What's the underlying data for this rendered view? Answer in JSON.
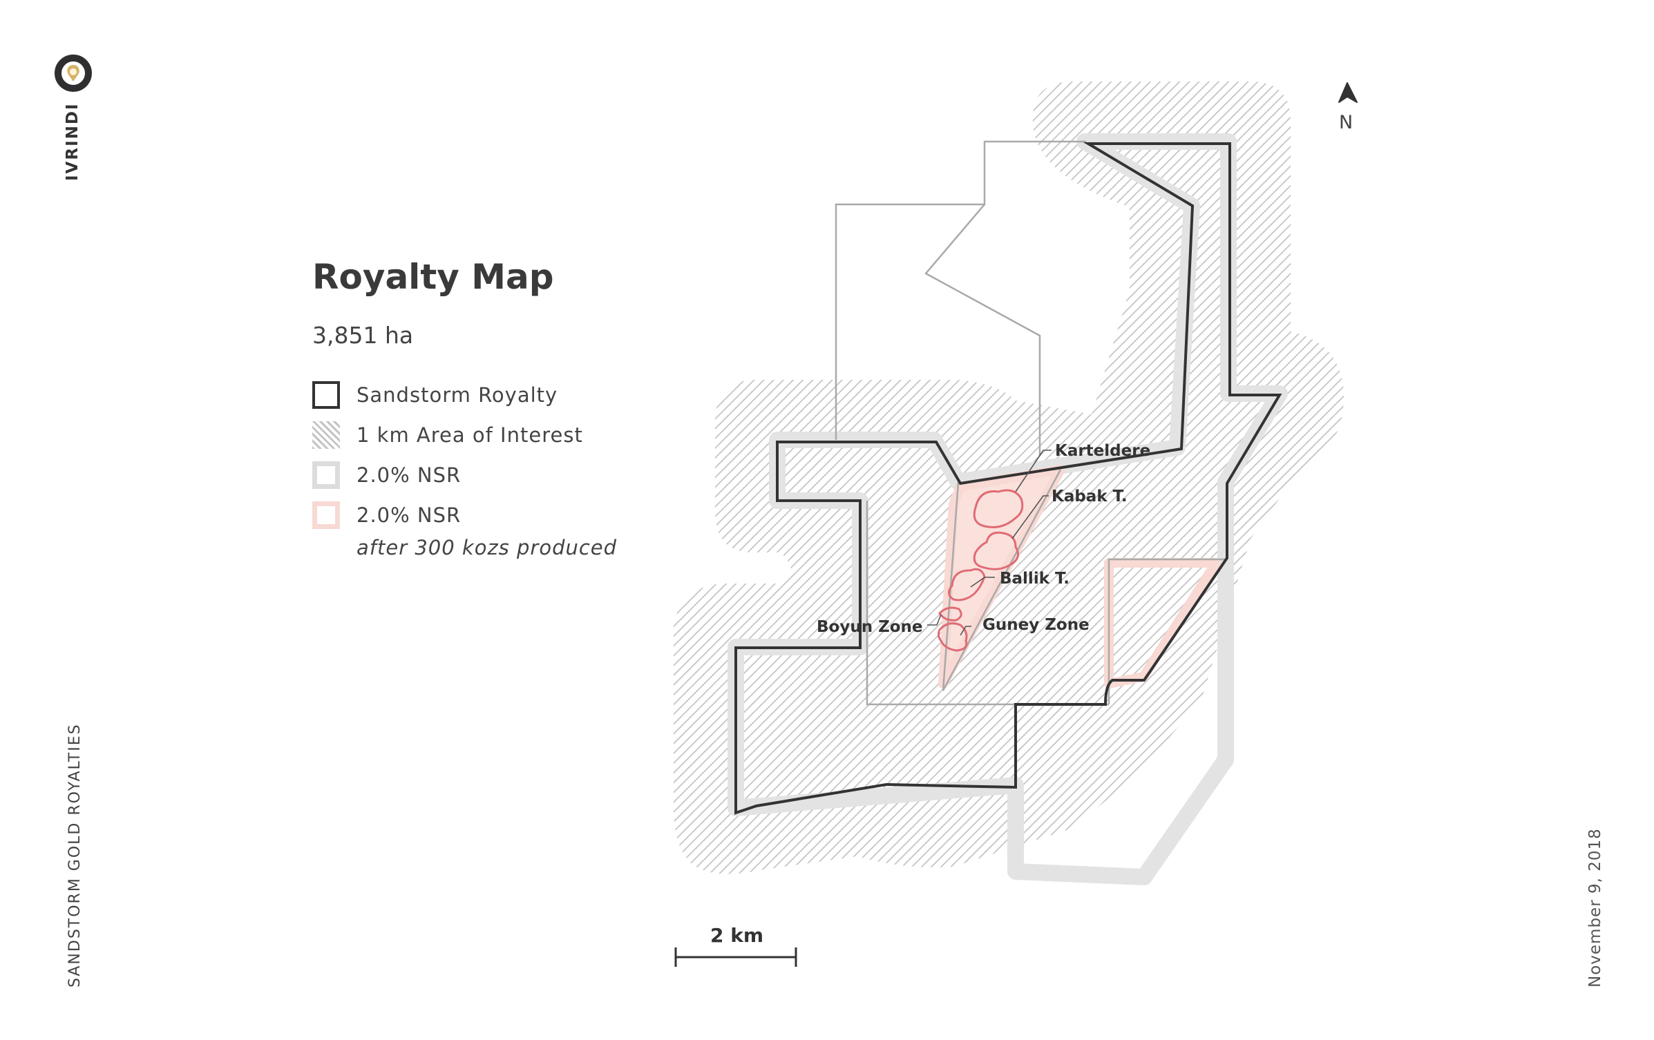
{
  "sidebar": {
    "brand": "IVRINDI",
    "company": "SANDSTORM GOLD ROYALTIES",
    "date": "November 9, 2018"
  },
  "map": {
    "title": "Royalty Map",
    "area": "3,851 ha",
    "legend": [
      {
        "label": "Sandstorm Royalty"
      },
      {
        "label": "1 km Area of Interest"
      },
      {
        "label": "2.0% NSR"
      },
      {
        "label": "2.0% NSR",
        "sublabel": "after 300 kozs produced"
      }
    ],
    "zones": [
      "Karteldere",
      "Kabak T.",
      "Ballik T.",
      "Boyun Zone",
      "Guney Zone"
    ],
    "north": "N",
    "scale": "2 km"
  },
  "colors": {
    "royalty_outline": "#333333",
    "nsr": "#dcdcdc",
    "nsr_pink": "#f8d9d3",
    "deposit": "#e06b74",
    "logo_gold": "#d4b46a"
  }
}
